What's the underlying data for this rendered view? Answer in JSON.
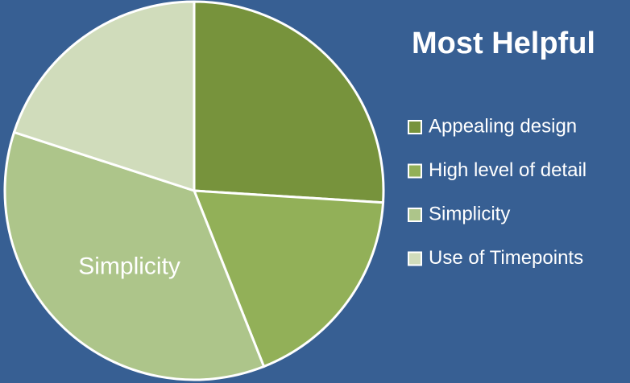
{
  "chart_data": {
    "type": "pie",
    "title": "Most Helpful",
    "categories": [
      "Appealing design",
      "High level of detail",
      "Simplicity",
      "Use of Timepoints"
    ],
    "values": [
      26,
      18,
      36,
      20
    ],
    "colors": [
      "#77933c",
      "#92b058",
      "#adc58a",
      "#d0dcbb"
    ],
    "data_labels": [
      null,
      null,
      "Simplicity",
      null
    ],
    "legend": "right"
  }
}
